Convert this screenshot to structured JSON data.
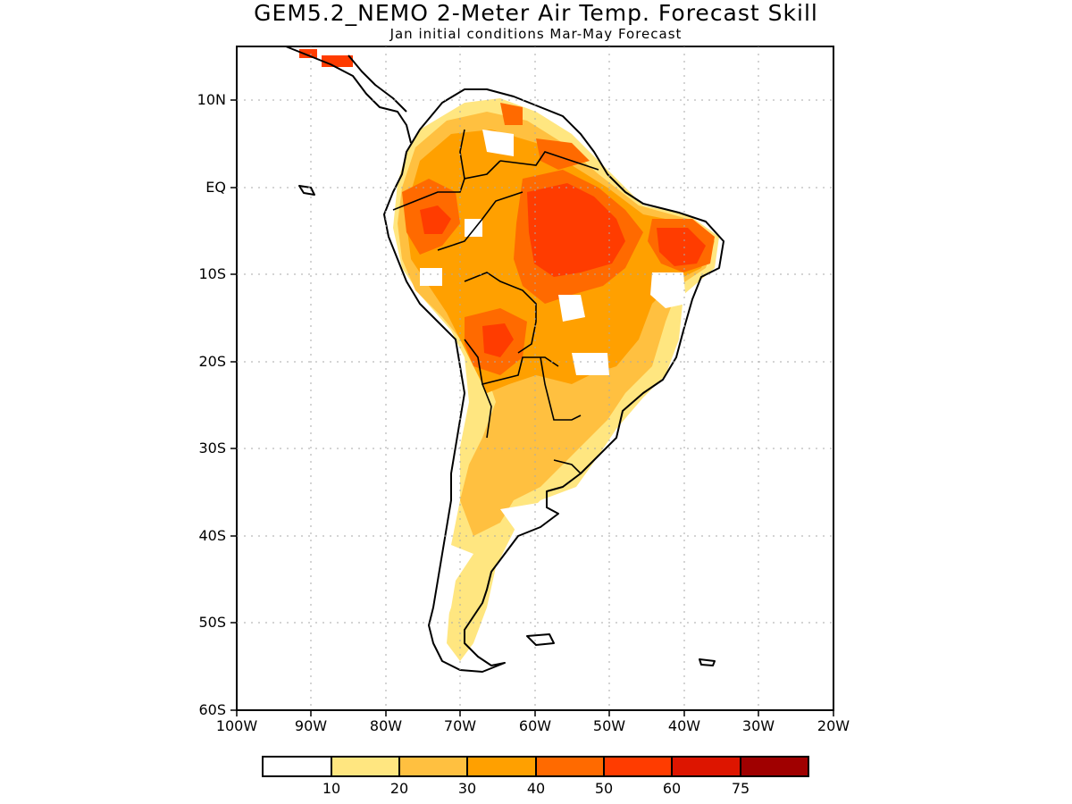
{
  "title": "GEM5.2_NEMO 2-Meter Air Temp. Forecast Skill",
  "subtitle": "Jan initial conditions  Mar-May Forecast",
  "axes": {
    "lat_labels": [
      "10N",
      "EQ",
      "10S",
      "20S",
      "30S",
      "40S",
      "50S",
      "60S"
    ],
    "lon_labels": [
      "100W",
      "90W",
      "80W",
      "70W",
      "60W",
      "50W",
      "40W",
      "30W",
      "20W"
    ],
    "lat_range": [
      -60,
      15
    ],
    "lon_range": [
      -100,
      -20
    ]
  },
  "colorbar": {
    "labels": [
      "10",
      "20",
      "30",
      "40",
      "50",
      "60",
      "75"
    ],
    "colors": [
      "#ffffff",
      "#ffe680",
      "#ffc040",
      "#ffa000",
      "#ff6a00",
      "#ff3c00",
      "#dd1500",
      "#a00000"
    ]
  }
}
